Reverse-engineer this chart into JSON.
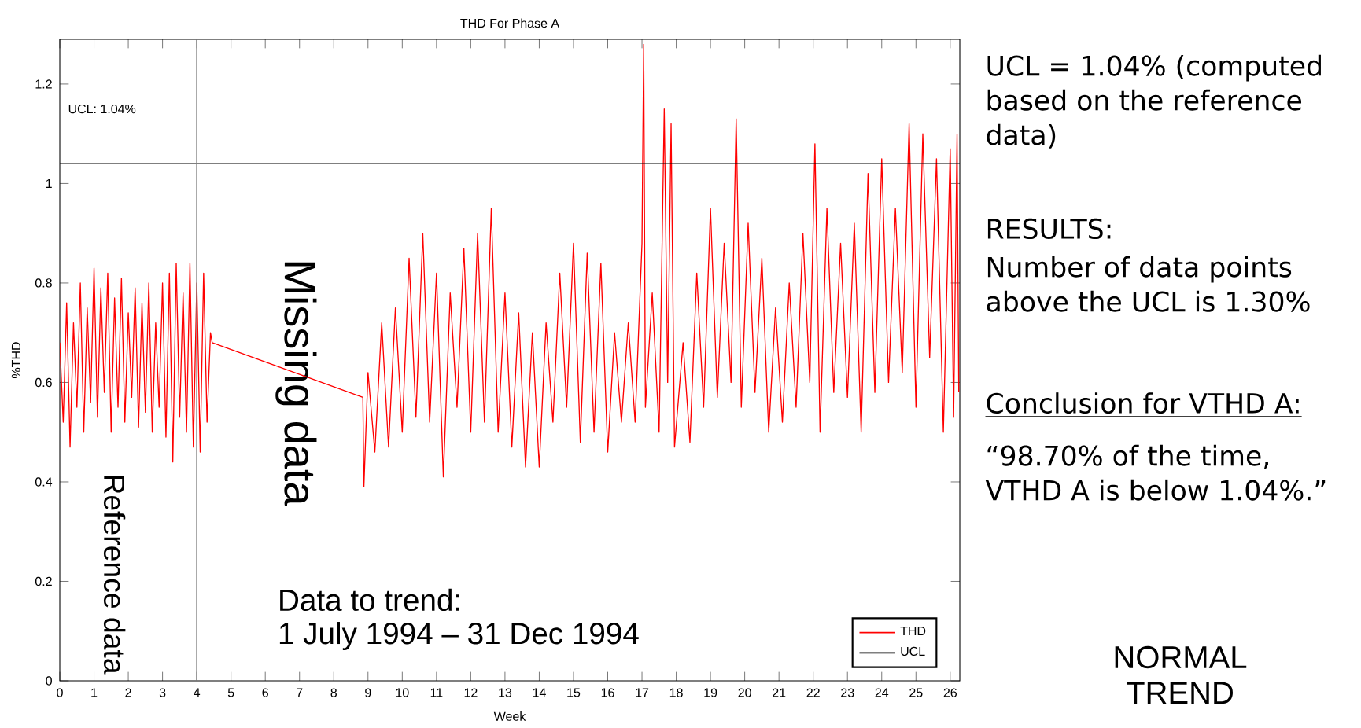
{
  "chart_data": {
    "type": "line",
    "title": "THD For Phase A",
    "xlabel": "Week",
    "ylabel": "%THD",
    "series": [
      {
        "name": "THD",
        "color": "#ff0000",
        "x": [
          0,
          0.1,
          0.2,
          0.3,
          0.4,
          0.5,
          0.6,
          0.7,
          0.8,
          0.9,
          1.0,
          1.1,
          1.2,
          1.3,
          1.4,
          1.5,
          1.6,
          1.7,
          1.8,
          1.9,
          2.0,
          2.1,
          2.2,
          2.3,
          2.4,
          2.5,
          2.6,
          2.7,
          2.8,
          2.9,
          3.0,
          3.1,
          3.2,
          3.3,
          3.4,
          3.5,
          3.6,
          3.7,
          3.8,
          3.9,
          4.0,
          4.1,
          4.2,
          4.3,
          4.4,
          4.45,
          8.85,
          8.88,
          9.0,
          9.2,
          9.4,
          9.6,
          9.8,
          10.0,
          10.2,
          10.4,
          10.6,
          10.8,
          11.0,
          11.2,
          11.4,
          11.6,
          11.8,
          12.0,
          12.2,
          12.4,
          12.6,
          12.8,
          13.0,
          13.2,
          13.4,
          13.6,
          13.8,
          14.0,
          14.2,
          14.4,
          14.6,
          14.8,
          15.0,
          15.2,
          15.4,
          15.6,
          15.8,
          16.0,
          16.2,
          16.4,
          16.6,
          16.8,
          17.0,
          17.05,
          17.1,
          17.3,
          17.5,
          17.65,
          17.75,
          17.85,
          17.95,
          18.2,
          18.4,
          18.6,
          18.8,
          19.0,
          19.2,
          19.4,
          19.6,
          19.75,
          19.9,
          20.1,
          20.3,
          20.5,
          20.7,
          20.9,
          21.1,
          21.3,
          21.5,
          21.7,
          21.9,
          22.05,
          22.2,
          22.4,
          22.6,
          22.8,
          23.0,
          23.2,
          23.4,
          23.6,
          23.8,
          24.0,
          24.2,
          24.4,
          24.6,
          24.8,
          25.0,
          25.2,
          25.4,
          25.6,
          25.8,
          26.0,
          26.1,
          26.2,
          26.25
        ],
        "values": [
          0.68,
          0.52,
          0.76,
          0.47,
          0.72,
          0.55,
          0.8,
          0.5,
          0.75,
          0.56,
          0.83,
          0.53,
          0.79,
          0.58,
          0.82,
          0.5,
          0.77,
          0.55,
          0.81,
          0.52,
          0.74,
          0.57,
          0.79,
          0.51,
          0.76,
          0.54,
          0.8,
          0.5,
          0.72,
          0.55,
          0.8,
          0.49,
          0.82,
          0.44,
          0.84,
          0.53,
          0.78,
          0.5,
          0.84,
          0.47,
          0.8,
          0.46,
          0.82,
          0.52,
          0.7,
          0.68,
          0.57,
          0.39,
          0.62,
          0.46,
          0.72,
          0.47,
          0.75,
          0.5,
          0.85,
          0.53,
          0.9,
          0.52,
          0.82,
          0.41,
          0.78,
          0.55,
          0.87,
          0.5,
          0.9,
          0.52,
          0.95,
          0.5,
          0.78,
          0.47,
          0.74,
          0.43,
          0.7,
          0.43,
          0.72,
          0.52,
          0.82,
          0.55,
          0.88,
          0.48,
          0.86,
          0.5,
          0.84,
          0.46,
          0.7,
          0.52,
          0.72,
          0.52,
          0.88,
          1.28,
          0.55,
          0.78,
          0.5,
          1.15,
          0.6,
          1.12,
          0.47,
          0.68,
          0.48,
          0.82,
          0.55,
          0.95,
          0.57,
          0.88,
          0.6,
          1.13,
          0.55,
          0.92,
          0.58,
          0.85,
          0.5,
          0.75,
          0.52,
          0.8,
          0.55,
          0.9,
          0.6,
          1.08,
          0.5,
          0.95,
          0.58,
          0.88,
          0.57,
          0.92,
          0.5,
          1.02,
          0.58,
          1.05,
          0.6,
          0.95,
          0.62,
          1.12,
          0.55,
          1.1,
          0.65,
          1.05,
          0.5,
          1.07,
          0.53,
          1.1,
          0.58
        ]
      },
      {
        "name": "UCL",
        "color": "#000000",
        "x": [
          0,
          26.28
        ],
        "values": [
          1.04,
          1.04
        ]
      }
    ],
    "xlim": [
      0,
      26.28
    ],
    "ylim": [
      0,
      1.29
    ],
    "xticks": [
      0,
      1,
      2,
      3,
      4,
      5,
      6,
      7,
      8,
      9,
      10,
      11,
      12,
      13,
      14,
      15,
      16,
      17,
      18,
      19,
      20,
      21,
      22,
      23,
      24,
      25,
      26
    ],
    "yticks": [
      0,
      0.2,
      0.4,
      0.6,
      0.8,
      1,
      1.2
    ],
    "ref_lines": [
      {
        "axis": "x",
        "value": 4,
        "color": "#808080"
      }
    ],
    "legend": "bottom right",
    "grid": false,
    "marker": "none",
    "line_style": "solid",
    "annotations": [
      "UCL: 1.04%",
      "Reference data",
      "Missing data",
      "Data to trend:",
      "1 July 1994 – 31 Dec 1994",
      "UCL = 1.04% (computed based on the reference data)",
      "RESULTS:",
      "Number of data points above the UCL is 1.30%",
      "Conclusion for VTHD A:",
      "“98.70% of the time, VTHD A is below 1.04%.”",
      "NORMAL TREND"
    ]
  }
}
